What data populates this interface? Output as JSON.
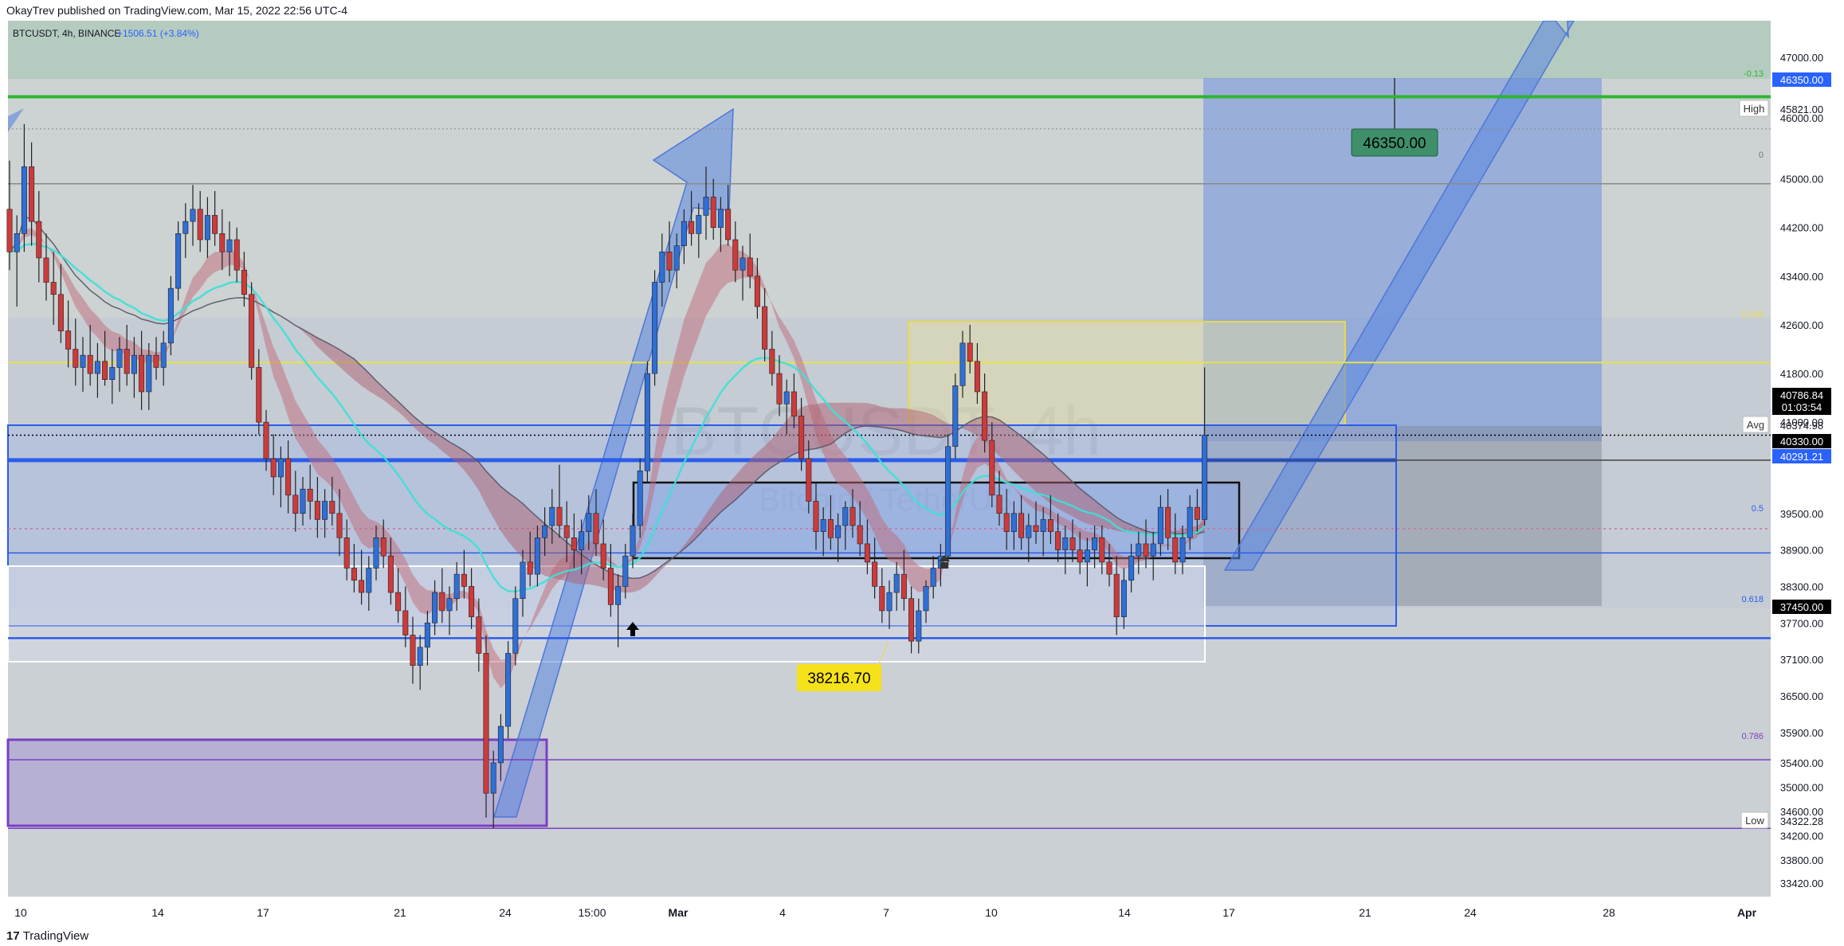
{
  "header": {
    "published_text": "OkayTrev published on TradingView.com, Mar 15, 2022 22:56 UTC-4"
  },
  "footer": {
    "logo_mark": "17",
    "logo_text": "TradingView"
  },
  "legend": {
    "symbol": "BTCUSDT, 4h, BINANCE",
    "change": "+1506.51 (+3.84%)"
  },
  "watermark": {
    "symbol": "BTCUSDT, 4h",
    "description": "Bitcoin / TetherUS"
  },
  "colors": {
    "bull": "#2f6fd6",
    "bear": "#cc3b3b",
    "green_line": "#2fb52f",
    "yellow_line": "#e8e24a",
    "blue_line": "#2a5de8",
    "purple": "#7a3fc4",
    "cyan_ema": "#3ee0d6",
    "label_dark": "#000000",
    "label_blue": "#2962ff",
    "target_label": "#3f8f6a",
    "low_label": "#f5e21a"
  },
  "chart_data": {
    "type": "candlestick",
    "symbol": "BTCUSDT",
    "interval": "4h",
    "exchange": "BINANCE",
    "ylim": [
      33200,
      47600
    ],
    "y_ticks": [
      33420,
      33800,
      34200,
      34600,
      35000,
      35400,
      35900,
      36500,
      37100,
      37700,
      38300,
      38900,
      39500,
      41000,
      41800,
      42600,
      43400,
      44200,
      45000,
      46000,
      47000
    ],
    "x_ticks": [
      "10",
      "14",
      "17",
      "21",
      "24",
      "15:00",
      "Mar",
      "4",
      "7",
      "10",
      "14",
      "17",
      "21",
      "24",
      "28",
      "Apr"
    ],
    "price_labels": {
      "target": "46350.00",
      "high_text": "High",
      "high": "45821.00",
      "avg_text": "Avg",
      "avg": "40374.98",
      "current": "40786.84",
      "countdown": "01:03:54",
      "level_40330": "40330.00",
      "level_40291": "40291.21",
      "level_37450": "37450.00",
      "low_text": "Low",
      "low": "34322.28"
    },
    "fib_labels": {
      "f_neg013": "-0.13",
      "f0": "0",
      "f0236": "0.236",
      "f05": "0.5",
      "f0618": "0.618",
      "f0786": "0.786"
    },
    "annotations": {
      "target_box": "46350.00",
      "low_box": "38216.70"
    },
    "levels": {
      "green_line": 46350,
      "high": 45821,
      "fib_0": 44920,
      "yellow_line": 41980,
      "current": 40786.84,
      "avg_blue": 40374.98,
      "fib_05": 38850,
      "fib_0618": 37450,
      "fib_0786": 35450,
      "low": 34322.28,
      "pink_dotted": 39250
    },
    "candles": [
      [
        0,
        44500,
        45300,
        43500,
        43800
      ],
      [
        1,
        43800,
        44400,
        42900,
        44100
      ],
      [
        2,
        44100,
        45900,
        43800,
        45200
      ],
      [
        3,
        45200,
        45600,
        43900,
        44300
      ],
      [
        4,
        44300,
        44800,
        43300,
        43700
      ],
      [
        5,
        43700,
        44100,
        43000,
        43300
      ],
      [
        6,
        43300,
        43800,
        42600,
        43100
      ],
      [
        7,
        43100,
        43600,
        42300,
        42500
      ],
      [
        8,
        42500,
        43000,
        41900,
        42200
      ],
      [
        9,
        42200,
        42700,
        41600,
        41900
      ],
      [
        10,
        41900,
        42400,
        41500,
        42100
      ],
      [
        11,
        42100,
        42600,
        41600,
        41800
      ],
      [
        12,
        41800,
        42300,
        41400,
        42000
      ],
      [
        13,
        42000,
        42500,
        41600,
        41700
      ],
      [
        14,
        41700,
        42200,
        41300,
        41900
      ],
      [
        15,
        41900,
        42400,
        41500,
        42200
      ],
      [
        16,
        42200,
        42600,
        41600,
        41800
      ],
      [
        17,
        41800,
        42400,
        41400,
        42100
      ],
      [
        18,
        42100,
        42500,
        41200,
        41500
      ],
      [
        19,
        41500,
        42300,
        41200,
        42100
      ],
      [
        20,
        42100,
        42400,
        41700,
        41900
      ],
      [
        21,
        41900,
        42500,
        41600,
        42300
      ],
      [
        22,
        42300,
        43400,
        42100,
        43200
      ],
      [
        23,
        43200,
        44300,
        43000,
        44100
      ],
      [
        24,
        44100,
        44600,
        43700,
        44300
      ],
      [
        25,
        44300,
        44900,
        43900,
        44500
      ],
      [
        26,
        44500,
        44800,
        43800,
        44000
      ],
      [
        27,
        44000,
        44700,
        43700,
        44400
      ],
      [
        28,
        44400,
        44800,
        43900,
        44100
      ],
      [
        29,
        44100,
        44500,
        43500,
        43800
      ],
      [
        30,
        43800,
        44300,
        43400,
        44000
      ],
      [
        31,
        44000,
        44200,
        43300,
        43500
      ],
      [
        32,
        43500,
        43800,
        42900,
        43100
      ],
      [
        33,
        43100,
        43300,
        41700,
        41900
      ],
      [
        34,
        41900,
        42200,
        40800,
        41000
      ],
      [
        35,
        41000,
        41200,
        40200,
        40400
      ],
      [
        36,
        40400,
        40800,
        39800,
        40100
      ],
      [
        37,
        40100,
        40600,
        39600,
        40400
      ],
      [
        38,
        40400,
        40700,
        39500,
        39800
      ],
      [
        39,
        39800,
        40200,
        39200,
        39500
      ],
      [
        40,
        39500,
        40100,
        39300,
        39900
      ],
      [
        41,
        39900,
        40300,
        39400,
        39700
      ],
      [
        42,
        39700,
        40100,
        39100,
        39400
      ],
      [
        43,
        39400,
        39900,
        39100,
        39700
      ],
      [
        44,
        39700,
        40100,
        39300,
        39500
      ],
      [
        45,
        39500,
        39900,
        38800,
        39100
      ],
      [
        46,
        39100,
        39400,
        38400,
        38600
      ],
      [
        47,
        38600,
        39000,
        38200,
        38400
      ],
      [
        48,
        38400,
        38900,
        38000,
        38200
      ],
      [
        49,
        38200,
        38800,
        37900,
        38600
      ],
      [
        50,
        38600,
        39300,
        38400,
        39100
      ],
      [
        51,
        39100,
        39400,
        38600,
        38800
      ],
      [
        52,
        38800,
        39100,
        38000,
        38200
      ],
      [
        53,
        38200,
        38600,
        37700,
        37900
      ],
      [
        54,
        37900,
        38300,
        37300,
        37500
      ],
      [
        55,
        37500,
        37800,
        36700,
        37000
      ],
      [
        56,
        37000,
        37500,
        36600,
        37300
      ],
      [
        57,
        37300,
        37900,
        37000,
        37700
      ],
      [
        58,
        37700,
        38400,
        37500,
        38200
      ],
      [
        59,
        38200,
        38600,
        37700,
        37900
      ],
      [
        60,
        37900,
        38300,
        37500,
        38100
      ],
      [
        61,
        38100,
        38700,
        37900,
        38500
      ],
      [
        62,
        38500,
        38900,
        38100,
        38300
      ],
      [
        63,
        38300,
        38600,
        37600,
        37800
      ],
      [
        64,
        37800,
        38100,
        36900,
        37200
      ],
      [
        65,
        37200,
        37500,
        34500,
        34900
      ],
      [
        66,
        34900,
        35600,
        34322,
        35400
      ],
      [
        67,
        35400,
        36200,
        35100,
        36000
      ],
      [
        68,
        36000,
        37400,
        35800,
        37200
      ],
      [
        69,
        37200,
        38300,
        37000,
        38100
      ],
      [
        70,
        38100,
        38900,
        37800,
        38700
      ],
      [
        71,
        38700,
        39200,
        38300,
        38500
      ],
      [
        72,
        38500,
        39300,
        38300,
        39100
      ],
      [
        73,
        39100,
        39600,
        38800,
        39300
      ],
      [
        74,
        39300,
        39900,
        39000,
        39600
      ],
      [
        75,
        39600,
        40300,
        39100,
        39300
      ],
      [
        76,
        39300,
        39700,
        38700,
        39100
      ],
      [
        77,
        39100,
        39500,
        38600,
        38900
      ],
      [
        78,
        38900,
        39400,
        38500,
        39200
      ],
      [
        79,
        39200,
        39800,
        38900,
        39500
      ],
      [
        80,
        39500,
        39900,
        38800,
        39000
      ],
      [
        81,
        39000,
        39400,
        38400,
        38600
      ],
      [
        82,
        38600,
        39000,
        37800,
        38000
      ],
      [
        83,
        38000,
        38500,
        37300,
        38300
      ],
      [
        84,
        38300,
        39000,
        38100,
        38800
      ],
      [
        85,
        38800,
        39500,
        38600,
        39300
      ],
      [
        86,
        39300,
        40400,
        39100,
        40200
      ],
      [
        87,
        40200,
        42000,
        40000,
        41800
      ],
      [
        88,
        41800,
        43500,
        41600,
        43300
      ],
      [
        89,
        43300,
        44100,
        42900,
        43800
      ],
      [
        90,
        43800,
        44300,
        43300,
        43500
      ],
      [
        91,
        43500,
        44100,
        43200,
        43900
      ],
      [
        92,
        43900,
        44500,
        43600,
        44300
      ],
      [
        93,
        44300,
        44800,
        43900,
        44100
      ],
      [
        94,
        44100,
        44600,
        43700,
        44400
      ],
      [
        95,
        44400,
        45200,
        44000,
        44700
      ],
      [
        96,
        44700,
        45000,
        44000,
        44200
      ],
      [
        97,
        44200,
        44700,
        43800,
        44500
      ],
      [
        98,
        44500,
        44900,
        43900,
        44000
      ],
      [
        99,
        44000,
        44300,
        43300,
        43500
      ],
      [
        100,
        43500,
        43900,
        43000,
        43700
      ],
      [
        101,
        43700,
        44100,
        43200,
        43400
      ],
      [
        102,
        43400,
        43700,
        42700,
        42900
      ],
      [
        103,
        42900,
        43200,
        42000,
        42200
      ],
      [
        104,
        42200,
        42500,
        41600,
        41800
      ],
      [
        105,
        41800,
        42100,
        41100,
        41300
      ],
      [
        106,
        41300,
        41700,
        40800,
        41500
      ],
      [
        107,
        41500,
        41800,
        40900,
        41100
      ],
      [
        108,
        41100,
        41400,
        40200,
        40400
      ],
      [
        109,
        40400,
        40700,
        39500,
        39700
      ],
      [
        110,
        39700,
        40000,
        38900,
        39200
      ],
      [
        111,
        39200,
        39600,
        38800,
        39400
      ],
      [
        112,
        39400,
        39800,
        38900,
        39100
      ],
      [
        113,
        39100,
        39500,
        38700,
        39300
      ],
      [
        114,
        39300,
        39700,
        38900,
        39600
      ],
      [
        115,
        39600,
        39900,
        39100,
        39300
      ],
      [
        116,
        39300,
        39700,
        38800,
        39000
      ],
      [
        117,
        39000,
        39400,
        38500,
        38700
      ],
      [
        118,
        38700,
        39100,
        38100,
        38300
      ],
      [
        119,
        38300,
        38600,
        37700,
        37900
      ],
      [
        120,
        37900,
        38400,
        37600,
        38200
      ],
      [
        121,
        38200,
        38700,
        37900,
        38500
      ],
      [
        122,
        38500,
        38900,
        37900,
        38100
      ],
      [
        123,
        38100,
        38300,
        37200,
        37400
      ],
      [
        124,
        37400,
        38100,
        37200,
        37900
      ],
      [
        125,
        37900,
        38400,
        37700,
        38300
      ],
      [
        126,
        38300,
        38800,
        38100,
        38600
      ],
      [
        127,
        38600,
        39000,
        38300,
        38800
      ],
      [
        128,
        38800,
        40800,
        38600,
        40600
      ],
      [
        129,
        40600,
        41800,
        40400,
        41600
      ],
      [
        130,
        41600,
        42500,
        41400,
        42300
      ],
      [
        131,
        42300,
        42600,
        41800,
        42000
      ],
      [
        132,
        42000,
        42300,
        41300,
        41500
      ],
      [
        133,
        41500,
        41800,
        40500,
        40700
      ],
      [
        134,
        40700,
        41000,
        39600,
        39800
      ],
      [
        135,
        39800,
        40200,
        39300,
        39500
      ],
      [
        136,
        39500,
        39900,
        38900,
        39200
      ],
      [
        137,
        39200,
        39700,
        38900,
        39500
      ],
      [
        138,
        39500,
        39800,
        38900,
        39100
      ],
      [
        139,
        39100,
        39500,
        38700,
        39300
      ],
      [
        140,
        39300,
        39700,
        39000,
        39200
      ],
      [
        141,
        39200,
        39600,
        38800,
        39400
      ],
      [
        142,
        39400,
        39800,
        39000,
        39200
      ],
      [
        143,
        39200,
        39500,
        38700,
        38900
      ],
      [
        144,
        38900,
        39300,
        38500,
        39100
      ],
      [
        145,
        39100,
        39400,
        38700,
        38900
      ],
      [
        146,
        38900,
        39200,
        38500,
        38700
      ],
      [
        147,
        38700,
        39100,
        38300,
        38900
      ],
      [
        148,
        38900,
        39300,
        38600,
        39100
      ],
      [
        149,
        39100,
        39300,
        38500,
        38700
      ],
      [
        150,
        38700,
        39000,
        38300,
        38500
      ],
      [
        151,
        38500,
        38800,
        37500,
        37800
      ],
      [
        152,
        37800,
        38600,
        37600,
        38400
      ],
      [
        153,
        38400,
        39000,
        38200,
        38800
      ],
      [
        154,
        38800,
        39200,
        38500,
        39000
      ],
      [
        155,
        39000,
        39400,
        38600,
        38800
      ],
      [
        156,
        38800,
        39200,
        38400,
        39000
      ],
      [
        157,
        39000,
        39800,
        38800,
        39600
      ],
      [
        158,
        39600,
        39900,
        38900,
        39100
      ],
      [
        159,
        39100,
        39500,
        38500,
        38700
      ],
      [
        160,
        38700,
        39300,
        38500,
        39100
      ],
      [
        161,
        39100,
        39800,
        38900,
        39600
      ],
      [
        162,
        39600,
        39900,
        39200,
        39400
      ],
      [
        163,
        39400,
        41900,
        39300,
        40787
      ]
    ]
  }
}
